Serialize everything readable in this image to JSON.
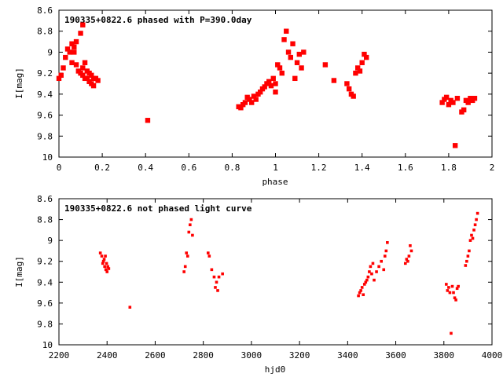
{
  "chart_data": [
    {
      "type": "scatter",
      "title": "190335+0822.6 phased with P=390.0day",
      "xlabel": "phase",
      "ylabel": "I[mag]",
      "xlim": [
        0,
        2
      ],
      "ylim": [
        8.6,
        10
      ],
      "y_inverted": true,
      "xticks": [
        "0",
        "0.2",
        "0.4",
        "0.6",
        "0.8",
        "1",
        "1.2",
        "1.4",
        "1.6",
        "1.8",
        "2"
      ],
      "yticks": [
        "8.6",
        "8.8",
        "9",
        "9.2",
        "9.4",
        "9.6",
        "9.8",
        "10"
      ],
      "marker_color": "#ff0000",
      "x": [
        0.0,
        0.01,
        0.02,
        0.03,
        0.04,
        0.05,
        0.06,
        0.06,
        0.07,
        0.07,
        0.08,
        0.08,
        0.09,
        0.1,
        0.1,
        0.11,
        0.11,
        0.11,
        0.12,
        0.12,
        0.13,
        0.13,
        0.14,
        0.14,
        0.15,
        0.15,
        0.16,
        0.16,
        0.17,
        0.18,
        0.41,
        0.83,
        0.84,
        0.85,
        0.86,
        0.87,
        0.88,
        0.89,
        0.9,
        0.91,
        0.92,
        0.93,
        0.94,
        0.95,
        0.96,
        0.97,
        0.98,
        0.99,
        1.0,
        1.0,
        1.01,
        1.02,
        1.03,
        1.04,
        1.05,
        1.06,
        1.07,
        1.08,
        1.09,
        1.1,
        1.11,
        1.12,
        1.13,
        1.23,
        1.27,
        1.33,
        1.34,
        1.35,
        1.36,
        1.37,
        1.38,
        1.39,
        1.4,
        1.41,
        1.42,
        1.77,
        1.78,
        1.79,
        1.8,
        1.81,
        1.82,
        1.83,
        1.84,
        1.86,
        1.87,
        1.88,
        1.89,
        1.9,
        1.91,
        1.92
      ],
      "y": [
        9.25,
        9.22,
        9.15,
        9.05,
        8.97,
        9.0,
        9.1,
        8.92,
        8.95,
        9.0,
        9.12,
        8.9,
        9.18,
        8.82,
        9.2,
        8.74,
        9.15,
        9.22,
        9.1,
        9.25,
        9.18,
        9.25,
        9.2,
        9.28,
        9.22,
        9.3,
        9.25,
        9.32,
        9.25,
        9.27,
        9.65,
        9.52,
        9.53,
        9.5,
        9.48,
        9.43,
        9.45,
        9.48,
        9.42,
        9.45,
        9.4,
        9.38,
        9.35,
        9.33,
        9.3,
        9.28,
        9.32,
        9.25,
        9.3,
        9.38,
        9.12,
        9.15,
        9.2,
        8.88,
        8.8,
        9.0,
        9.05,
        8.92,
        9.25,
        9.1,
        9.02,
        9.15,
        9.0,
        9.12,
        9.27,
        9.3,
        9.35,
        9.4,
        9.42,
        9.2,
        9.15,
        9.18,
        9.1,
        9.02,
        9.05,
        9.48,
        9.45,
        9.43,
        9.5,
        9.46,
        9.48,
        9.89,
        9.44,
        9.57,
        9.55,
        9.46,
        9.48,
        9.44,
        9.46,
        9.44
      ]
    },
    {
      "type": "scatter",
      "title": "190335+0822.6 not phased light curve",
      "xlabel": "hjd0",
      "ylabel": "I[mag]",
      "xlim": [
        2200,
        4000
      ],
      "ylim": [
        8.6,
        10
      ],
      "y_inverted": true,
      "xticks": [
        "2200",
        "2400",
        "2600",
        "2800",
        "3000",
        "3200",
        "3400",
        "3600",
        "3800",
        "4000"
      ],
      "yticks": [
        "8.6",
        "8.8",
        "9",
        "9.2",
        "9.4",
        "9.6",
        "9.8",
        "10"
      ],
      "marker_color": "#ff0000",
      "x": [
        2372,
        2378,
        2382,
        2385,
        2388,
        2390,
        2393,
        2395,
        2398,
        2400,
        2403,
        2407,
        2495,
        2720,
        2725,
        2730,
        2735,
        2740,
        2745,
        2750,
        2755,
        2820,
        2825,
        2835,
        2845,
        2850,
        2855,
        2860,
        2865,
        2880,
        3445,
        3450,
        3455,
        3460,
        3465,
        3470,
        3475,
        3480,
        3485,
        3490,
        3495,
        3500,
        3505,
        3510,
        3520,
        3530,
        3540,
        3550,
        3555,
        3560,
        3565,
        3640,
        3645,
        3650,
        3655,
        3660,
        3665,
        3810,
        3815,
        3820,
        3825,
        3830,
        3835,
        3840,
        3845,
        3850,
        3855,
        3860,
        3890,
        3895,
        3900,
        3905,
        3910,
        3915,
        3920,
        3925,
        3930,
        3935,
        3940
      ],
      "y": [
        9.12,
        9.15,
        9.22,
        9.2,
        9.18,
        9.25,
        9.15,
        9.28,
        9.22,
        9.3,
        9.25,
        9.27,
        9.64,
        9.3,
        9.25,
        9.12,
        9.15,
        8.92,
        8.85,
        8.8,
        8.95,
        9.12,
        9.15,
        9.28,
        9.35,
        9.45,
        9.4,
        9.48,
        9.35,
        9.32,
        9.53,
        9.5,
        9.48,
        9.45,
        9.52,
        9.42,
        9.4,
        9.38,
        9.35,
        9.3,
        9.25,
        9.32,
        9.22,
        9.38,
        9.3,
        9.25,
        9.2,
        9.28,
        9.15,
        9.1,
        9.02,
        9.22,
        9.18,
        9.2,
        9.15,
        9.05,
        9.1,
        9.42,
        9.48,
        9.45,
        9.5,
        9.89,
        9.44,
        9.5,
        9.55,
        9.57,
        9.46,
        9.44,
        9.24,
        9.2,
        9.15,
        9.1,
        9.0,
        8.95,
        8.98,
        8.9,
        8.85,
        8.8,
        8.74
      ]
    }
  ]
}
